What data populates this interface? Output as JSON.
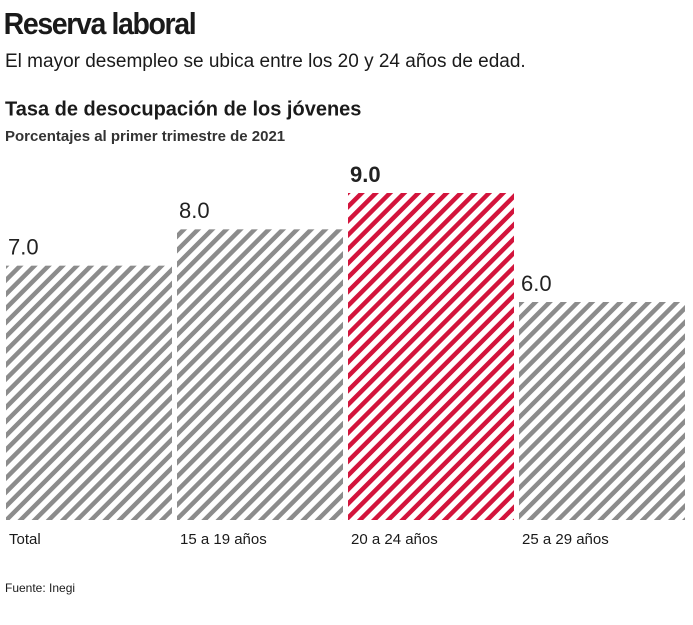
{
  "chart_data": {
    "type": "bar",
    "title": "Reserva laboral",
    "subtitle": "El mayor desempleo se ubica entre los 20 y 24 años de edad.",
    "chart_title": "Tasa de desocupación de los jóvenes",
    "chart_subtitle": "Porcentajes al primer trimestre de 2021",
    "categories": [
      "Total",
      "15 a 19 años",
      "20 a 24 años",
      "25 a 29 años"
    ],
    "values": [
      7.0,
      8.0,
      9.0,
      6.0
    ],
    "value_labels": [
      "7.0",
      "8.0",
      "9.0",
      "6.0"
    ],
    "colors": [
      "#8c8c8c",
      "#8c8c8c",
      "#d3143c",
      "#8c8c8c"
    ],
    "highlight": 2,
    "source": "Fuente: Inegi"
  }
}
